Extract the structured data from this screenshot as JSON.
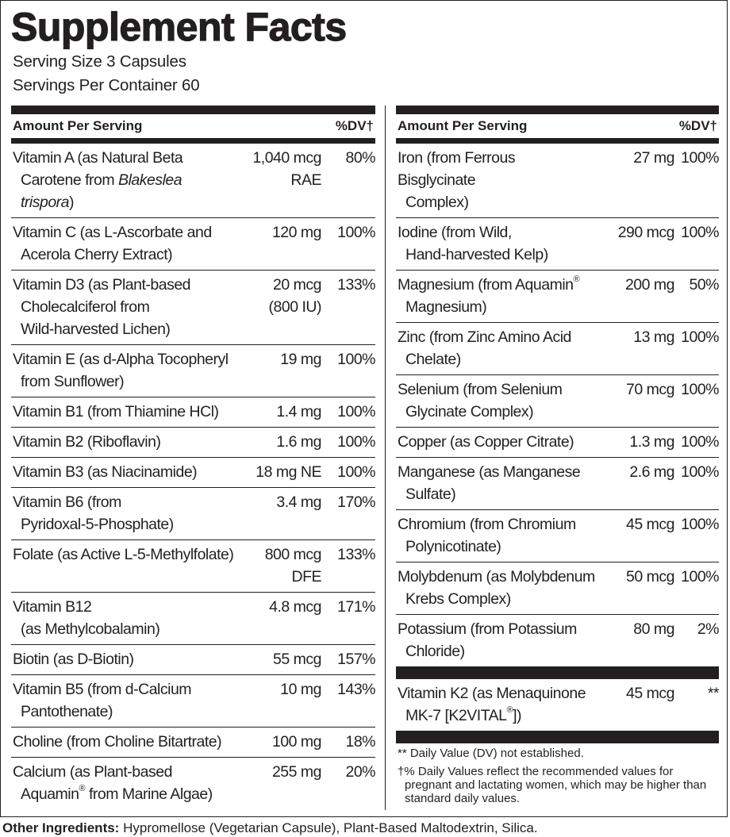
{
  "title": "Supplement Facts",
  "serving_size": "Serving Size 3 Capsules",
  "servings_per_container": "Servings Per Container 60",
  "header": {
    "amount_label": "Amount Per Serving",
    "dv_label": "%DV†"
  },
  "left_rows": [
    {
      "name": [
        "Vitamin A (as Natural Beta",
        "Carotene from Blakeslea trispora)"
      ],
      "italic": "Blakeslea trispora",
      "amount": [
        "1,040 mcg",
        "RAE"
      ],
      "dv": "80%"
    },
    {
      "name": [
        "Vitamin C (as L-Ascorbate and",
        "Acerola Cherry Extract)"
      ],
      "amount": [
        "120 mg"
      ],
      "dv": "100%"
    },
    {
      "name": [
        "Vitamin D3 (as Plant-based",
        "Cholecalciferol from",
        "Wild-harvested Lichen)"
      ],
      "amount": [
        "20 mcg",
        "(800 IU)"
      ],
      "dv": "133%"
    },
    {
      "name": [
        "Vitamin E (as d-Alpha Tocopheryl",
        "from Sunflower)"
      ],
      "amount": [
        "19 mg"
      ],
      "dv": "100%"
    },
    {
      "name": [
        "Vitamin B1 (from Thiamine HCl)"
      ],
      "amount": [
        "1.4 mg"
      ],
      "dv": "100%"
    },
    {
      "name": [
        "Vitamin B2 (Riboflavin)"
      ],
      "amount": [
        "1.6 mg"
      ],
      "dv": "100%"
    },
    {
      "name": [
        "Vitamin B3 (as Niacinamide)"
      ],
      "amount": [
        "18 mg NE"
      ],
      "dv": "100%"
    },
    {
      "name": [
        "Vitamin B6 (from",
        "Pyridoxal-5-Phosphate)"
      ],
      "amount": [
        "3.4 mg"
      ],
      "dv": "170%"
    },
    {
      "name": [
        "Folate (as Active L-5-Methylfolate)"
      ],
      "amount": [
        "800 mcg",
        "DFE"
      ],
      "dv": "133%"
    },
    {
      "name": [
        "Vitamin B12",
        "(as Methylcobalamin)"
      ],
      "amount": [
        "4.8 mcg"
      ],
      "dv": "171%"
    },
    {
      "name": [
        "Biotin (as D-Biotin)"
      ],
      "amount": [
        "55 mcg"
      ],
      "dv": "157%"
    },
    {
      "name": [
        "Vitamin B5 (from d-Calcium",
        "Pantothenate)"
      ],
      "amount": [
        "10 mg"
      ],
      "dv": "143%"
    },
    {
      "name": [
        "Choline (from Choline Bitartrate)"
      ],
      "amount": [
        "100 mg"
      ],
      "dv": "18%"
    },
    {
      "name": [
        "Calcium (as Plant-based",
        "Aquamin® from Marine Algae)"
      ],
      "amount": [
        "255 mg"
      ],
      "dv": "20%"
    }
  ],
  "right_rows": [
    {
      "name": [
        "Iron (from Ferrous Bisglycinate",
        "Complex)"
      ],
      "amount": [
        "27 mg"
      ],
      "dv": "100%"
    },
    {
      "name": [
        "Iodine (from Wild,",
        "Hand-harvested Kelp)"
      ],
      "amount": [
        "290 mcg"
      ],
      "dv": "100%"
    },
    {
      "name": [
        "Magnesium (from Aquamin®",
        "Magnesium)"
      ],
      "amount": [
        "200 mg"
      ],
      "dv": "50%"
    },
    {
      "name": [
        "Zinc (from Zinc Amino Acid",
        "Chelate)"
      ],
      "amount": [
        "13 mg"
      ],
      "dv": "100%"
    },
    {
      "name": [
        "Selenium (from Selenium",
        "Glycinate Complex)"
      ],
      "amount": [
        "70 mcg"
      ],
      "dv": "100%"
    },
    {
      "name": [
        "Copper (as Copper Citrate)"
      ],
      "amount": [
        "1.3 mg"
      ],
      "dv": "100%"
    },
    {
      "name": [
        "Manganese (as Manganese",
        "Sulfate)"
      ],
      "amount": [
        "2.6 mg"
      ],
      "dv": "100%"
    },
    {
      "name": [
        "Chromium (from Chromium",
        "Polynicotinate)"
      ],
      "amount": [
        "45 mcg"
      ],
      "dv": "100%"
    },
    {
      "name": [
        "Molybdenum (as Molybdenum",
        "Krebs Complex)"
      ],
      "amount": [
        "50 mcg"
      ],
      "dv": "100%"
    },
    {
      "name": [
        "Potassium (from Potassium",
        "Chloride)"
      ],
      "amount": [
        "80 mg"
      ],
      "dv": "2%"
    }
  ],
  "extra_rows": [
    {
      "name": [
        "Vitamin K2 (as Menaquinone",
        "MK-7 [K2VITAL®])"
      ],
      "amount": [
        "45 mcg"
      ],
      "dv": "**"
    }
  ],
  "footnotes": {
    "dv_not_established": "** Daily Value (DV) not established.",
    "dv_note": "†% Daily Values reflect the recommended values for pregnant and lactating women, which may be higher than standard daily values."
  },
  "other_ingredients": {
    "label": "Other Ingredients:",
    "text": " Hypromellose (Vegetarian Capsule), Plant-Based Maltodextrin, Silica."
  }
}
